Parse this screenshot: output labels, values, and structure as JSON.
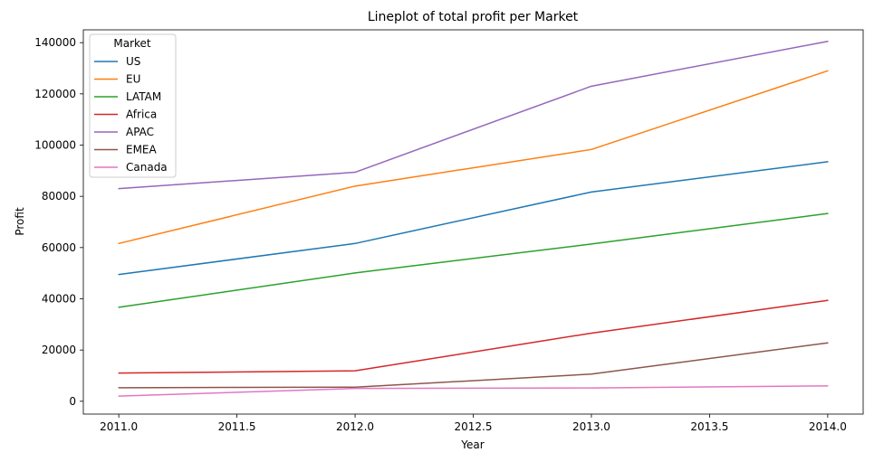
{
  "chart_data": {
    "type": "line",
    "title": "Lineplot of total profit per Market",
    "xlabel": "Year",
    "ylabel": "Profit",
    "x": [
      2011.0,
      2012.0,
      2013.0,
      2014.0
    ],
    "xlim": [
      2010.85,
      2014.15
    ],
    "ylim": [
      -5000,
      145000
    ],
    "xticks": [
      2011.0,
      2011.5,
      2012.0,
      2012.5,
      2013.0,
      2013.5,
      2014.0
    ],
    "xtick_labels": [
      "2011.0",
      "2011.5",
      "2012.0",
      "2012.5",
      "2013.0",
      "2013.5",
      "2014.0"
    ],
    "yticks": [
      0,
      20000,
      40000,
      60000,
      80000,
      100000,
      120000,
      140000
    ],
    "ytick_labels": [
      "0",
      "20000",
      "40000",
      "60000",
      "80000",
      "100000",
      "120000",
      "140000"
    ],
    "grid": false,
    "legend": {
      "title": "Market",
      "placement": "upper-left"
    },
    "series": [
      {
        "name": "US",
        "color": "#1f77b4",
        "values": [
          49500,
          61600,
          81700,
          93500
        ]
      },
      {
        "name": "EU",
        "color": "#ff7f0e",
        "values": [
          61600,
          84000,
          98300,
          129000
        ]
      },
      {
        "name": "LATAM",
        "color": "#2ca02c",
        "values": [
          36700,
          50100,
          61400,
          73300
        ]
      },
      {
        "name": "Africa",
        "color": "#d62728",
        "values": [
          11000,
          11900,
          26600,
          39400
        ]
      },
      {
        "name": "APAC",
        "color": "#9467bd",
        "values": [
          83000,
          89400,
          123000,
          140500
        ]
      },
      {
        "name": "EMEA",
        "color": "#8c564b",
        "values": [
          5300,
          5500,
          10600,
          22800
        ]
      },
      {
        "name": "Canada",
        "color": "#e377c2",
        "values": [
          2000,
          5000,
          5200,
          6000
        ]
      }
    ]
  }
}
